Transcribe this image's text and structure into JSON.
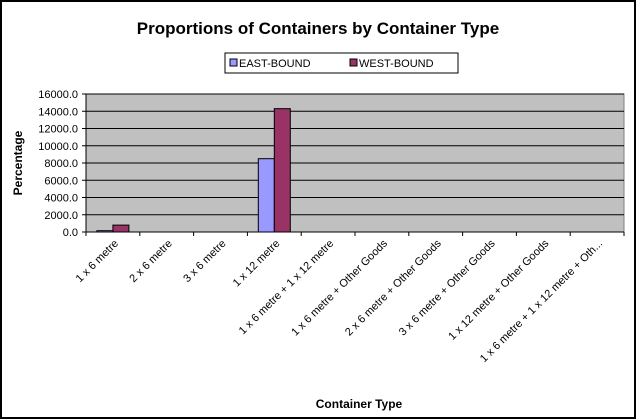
{
  "chart_data": {
    "type": "bar",
    "title": "Proportions of Containers by Container Type",
    "xlabel": "Container Type",
    "ylabel": "Percentage",
    "ylim": [
      0,
      16000
    ],
    "yticks": [
      "0.0",
      "2000.0",
      "4000.0",
      "6000.0",
      "8000.0",
      "10000.0",
      "12000.0",
      "14000.0",
      "16000.0"
    ],
    "grid": true,
    "legend_position": "top-center",
    "categories": [
      "1 x 6 metre",
      "2 x 6 metre",
      "3 x 6 metre",
      "1 x 12 metre",
      "1 x 6 metre + 1 x 12 metre",
      "1 x 6 metre + Other Goods",
      "2 x 6 metre + Other Goods",
      "3 x 6 metre + Other Goods",
      "1 x 12 metre + Other Goods",
      "1 x 6 metre + 1 x 12 metre + Oth..."
    ],
    "series": [
      {
        "name": "EAST-BOUND",
        "color": "#9999ff",
        "values": [
          150,
          0,
          0,
          8500,
          0,
          0,
          0,
          0,
          0,
          0
        ]
      },
      {
        "name": "WEST-BOUND",
        "color": "#993366",
        "values": [
          800,
          0,
          0,
          14300,
          0,
          0,
          0,
          0,
          0,
          0
        ]
      }
    ],
    "plot_background": "#c0c0c0"
  }
}
